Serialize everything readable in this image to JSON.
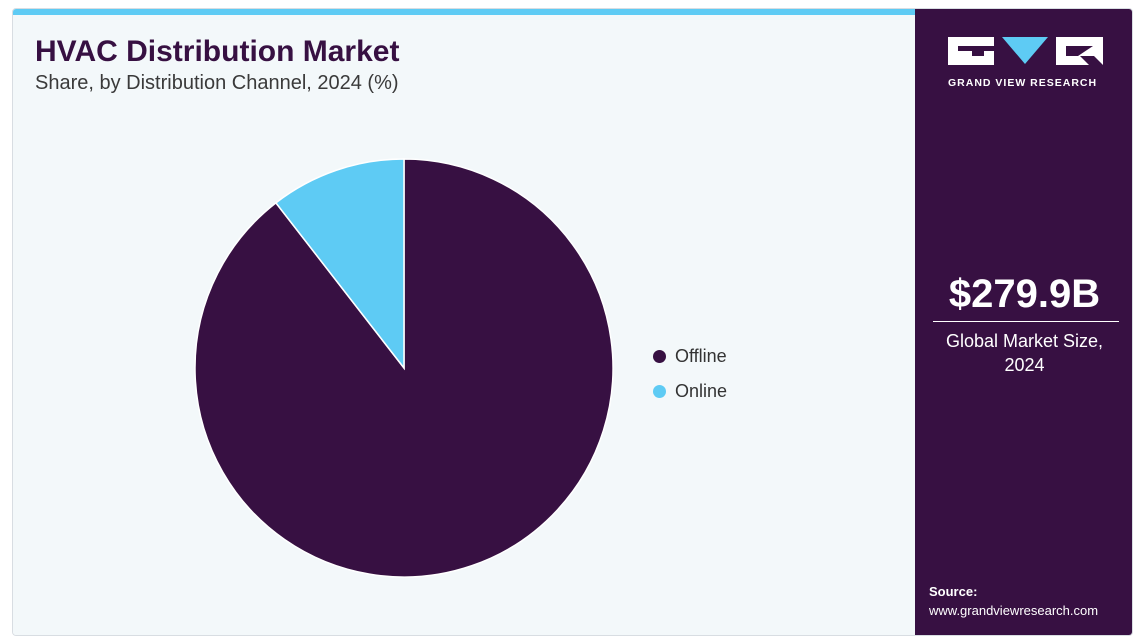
{
  "header": {
    "title": "HVAC Distribution Market",
    "subtitle": "Share, by Distribution Channel, 2024 (%)"
  },
  "sidebar": {
    "logo_text": "GRAND VIEW RESEARCH",
    "market_value": "$279.9B",
    "market_label_line1": "Global Market Size,",
    "market_label_line2": "2024",
    "source_label": "Source:",
    "source_url": "www.grandviewresearch.com"
  },
  "colors": {
    "offline": "#371042",
    "online": "#5ecbf4",
    "accent_bar": "#5ecbf4",
    "background": "#f3f8fa",
    "sidebar": "#371042"
  },
  "chart_data": {
    "type": "pie",
    "title": "HVAC Distribution Market",
    "subtitle": "Share, by Distribution Channel, 2024 (%)",
    "categories": [
      "Offline",
      "Online"
    ],
    "values": [
      89.5,
      10.5
    ],
    "colors": [
      "#371042",
      "#5ecbf4"
    ],
    "start_angle_deg": 0,
    "direction": "clockwise",
    "legend_position": "right"
  }
}
